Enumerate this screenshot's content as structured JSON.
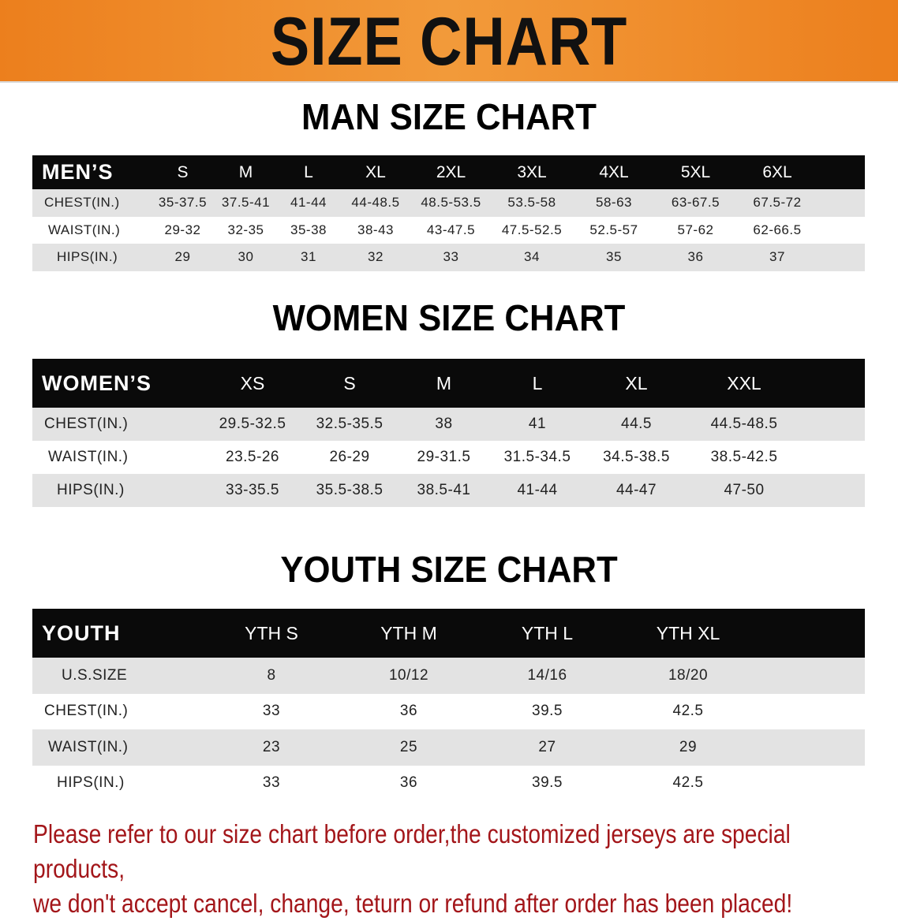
{
  "banner": {
    "title": "SIZE CHART",
    "color": "#ec7f1d"
  },
  "men": {
    "title": "MAN SIZE CHART",
    "header_label": "MEN’S",
    "sizes": [
      "S",
      "M",
      "L",
      "XL",
      "2XL",
      "3XL",
      "4XL",
      "5XL",
      "6XL"
    ],
    "rows": [
      {
        "label": "CHEST(IN.)",
        "values": [
          "35-37.5",
          "37.5-41",
          "41-44",
          "44-48.5",
          "48.5-53.5",
          "53.5-58",
          "58-63",
          "63-67.5",
          "67.5-72"
        ]
      },
      {
        "label": "WAIST(IN.)",
        "values": [
          "29-32",
          "32-35",
          "35-38",
          "38-43",
          "43-47.5",
          "47.5-52.5",
          "52.5-57",
          "57-62",
          "62-66.5"
        ]
      },
      {
        "label": "HIPS(IN.)",
        "values": [
          "29",
          "30",
          "31",
          "32",
          "33",
          "34",
          "35",
          "36",
          "37"
        ]
      }
    ]
  },
  "women": {
    "title": "WOMEN SIZE CHART",
    "header_label": "WOMEN’S",
    "sizes": [
      "XS",
      "S",
      "M",
      "L",
      "XL",
      "XXL"
    ],
    "rows": [
      {
        "label": "CHEST(IN.)",
        "values": [
          "29.5-32.5",
          "32.5-35.5",
          "38",
          "41",
          "44.5",
          "44.5-48.5"
        ]
      },
      {
        "label": "WAIST(IN.)",
        "values": [
          "23.5-26",
          "26-29",
          "29-31.5",
          "31.5-34.5",
          "34.5-38.5",
          "38.5-42.5"
        ]
      },
      {
        "label": "HIPS(IN.)",
        "values": [
          "33-35.5",
          "35.5-38.5",
          "38.5-41",
          "41-44",
          "44-47",
          "47-50"
        ]
      }
    ]
  },
  "youth": {
    "title": "YOUTH SIZE CHART",
    "header_label": "YOUTH",
    "sizes": [
      "YTH S",
      "YTH M",
      "YTH L",
      "YTH XL"
    ],
    "rows": [
      {
        "label": "U.S.SIZE",
        "values": [
          "8",
          "10/12",
          "14/16",
          "18/20"
        ]
      },
      {
        "label": "CHEST(IN.)",
        "values": [
          "33",
          "36",
          "39.5",
          "42.5"
        ]
      },
      {
        "label": "WAIST(IN.)",
        "values": [
          "23",
          "25",
          "27",
          "29"
        ]
      },
      {
        "label": "HIPS(IN.)",
        "values": [
          "33",
          "36",
          "39.5",
          "42.5"
        ]
      }
    ]
  },
  "notice": {
    "line1": "Please refer to our size chart before order,the customized jerseys are special products,",
    "line2": "we don't accept cancel, change, teturn or refund after order has been placed!",
    "color": "#a3161a"
  }
}
